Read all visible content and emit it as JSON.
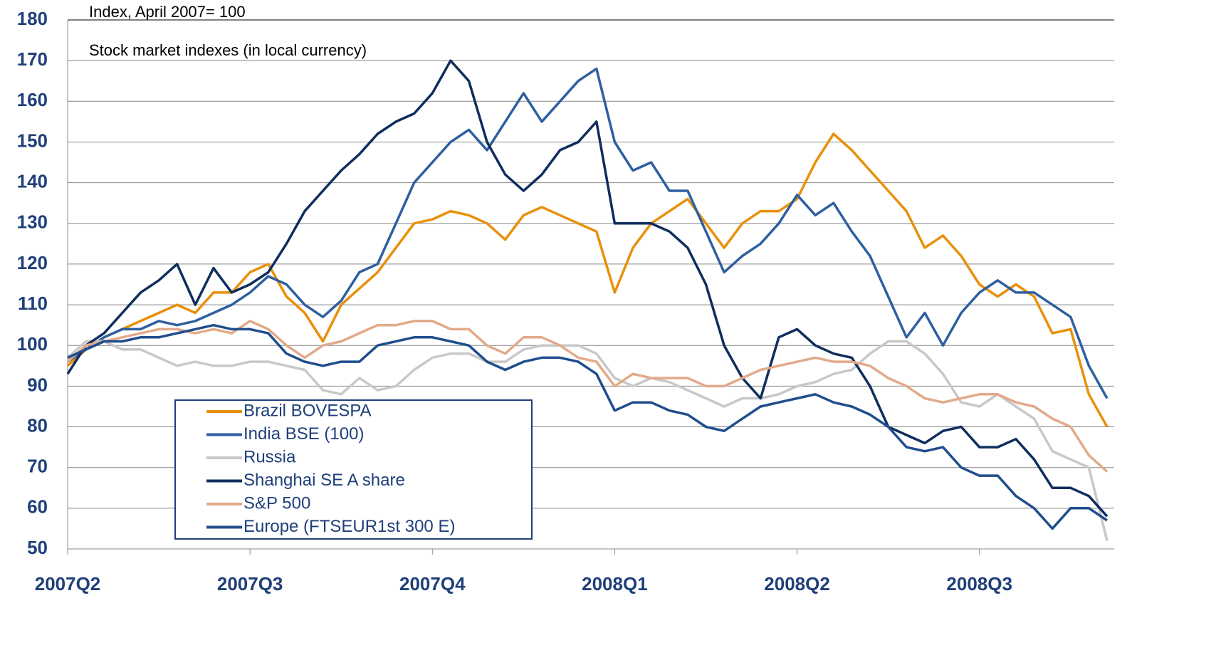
{
  "chart_data": {
    "type": "line",
    "subtitle": "Index, April 2007= 100",
    "title": "Stock market indexes (in local currency)",
    "categories": [
      "2007Q2",
      null,
      null,
      null,
      null,
      null,
      null,
      null,
      null,
      null,
      "2007Q3",
      null,
      null,
      null,
      null,
      null,
      null,
      null,
      null,
      null,
      "2007Q4",
      null,
      null,
      null,
      null,
      null,
      null,
      null,
      null,
      null,
      "2008Q1",
      null,
      null,
      null,
      null,
      null,
      null,
      null,
      null,
      null,
      "2008Q2",
      null,
      null,
      null,
      null,
      null,
      null,
      null,
      null,
      null,
      "2008Q3",
      null,
      null,
      null,
      null,
      null,
      null,
      null
    ],
    "ylim": [
      50,
      180
    ],
    "yticks": [
      50,
      60,
      70,
      80,
      90,
      100,
      110,
      120,
      130,
      140,
      150,
      160,
      170,
      180
    ],
    "grid": true,
    "series": [
      {
        "name": "Brazil BOVESPA",
        "color": "#e8900c",
        "values": [
          95,
          99,
          102,
          104,
          106,
          108,
          110,
          108,
          113,
          113,
          118,
          120,
          112,
          108,
          101,
          110,
          114,
          118,
          124,
          130,
          131,
          133,
          132,
          130,
          126,
          132,
          134,
          132,
          130,
          128,
          113,
          124,
          130,
          133,
          136,
          130,
          124,
          130,
          133,
          133,
          136,
          145,
          152,
          148,
          143,
          138,
          133,
          124,
          127,
          122,
          115,
          112,
          115,
          112,
          103,
          104,
          88,
          80
        ]
      },
      {
        "name": "India BSE (100)",
        "color": "#2e5fa0",
        "values": [
          96,
          99,
          102,
          104,
          104,
          106,
          105,
          106,
          108,
          110,
          113,
          117,
          115,
          110,
          107,
          111,
          118,
          120,
          130,
          140,
          145,
          150,
          153,
          148,
          155,
          162,
          155,
          160,
          165,
          168,
          150,
          143,
          145,
          138,
          138,
          128,
          118,
          122,
          125,
          130,
          137,
          132,
          135,
          128,
          122,
          112,
          102,
          108,
          100,
          108,
          113,
          116,
          113,
          113,
          110,
          107,
          95,
          87
        ]
      },
      {
        "name": "Russia",
        "color": "#c8c8c8",
        "values": [
          97,
          101,
          101,
          99,
          99,
          97,
          95,
          96,
          95,
          95,
          96,
          96,
          95,
          94,
          89,
          88,
          92,
          89,
          90,
          94,
          97,
          98,
          98,
          96,
          96,
          99,
          100,
          100,
          100,
          98,
          92,
          90,
          92,
          91,
          89,
          87,
          85,
          87,
          87,
          88,
          90,
          91,
          93,
          94,
          98,
          101,
          101,
          98,
          93,
          86,
          85,
          88,
          85,
          82,
          74,
          72,
          70,
          52
        ]
      },
      {
        "name": "Shanghai SE A share",
        "color": "#0f2d5e",
        "values": [
          93,
          100,
          103,
          108,
          113,
          116,
          120,
          110,
          119,
          113,
          115,
          118,
          125,
          133,
          138,
          143,
          147,
          152,
          155,
          157,
          162,
          170,
          165,
          150,
          142,
          138,
          142,
          148,
          150,
          155,
          130,
          130,
          130,
          128,
          124,
          115,
          100,
          92,
          87,
          102,
          104,
          100,
          98,
          97,
          90,
          80,
          78,
          76,
          79,
          80,
          75,
          75,
          77,
          72,
          65,
          65,
          63,
          58
        ]
      },
      {
        "name": "S&P 500",
        "color": "#e2aa8a",
        "values": [
          96,
          100,
          101,
          102,
          103,
          104,
          104,
          103,
          104,
          103,
          106,
          104,
          100,
          97,
          100,
          101,
          103,
          105,
          105,
          106,
          106,
          104,
          104,
          100,
          98,
          102,
          102,
          100,
          97,
          96,
          90,
          93,
          92,
          92,
          92,
          90,
          90,
          92,
          94,
          95,
          96,
          97,
          96,
          96,
          95,
          92,
          90,
          87,
          86,
          87,
          88,
          88,
          86,
          85,
          82,
          80,
          73,
          69
        ]
      },
      {
        "name": "Europe (FTSEUR1st 300 E)",
        "color": "#1f4e8c",
        "values": [
          97,
          99,
          101,
          101,
          102,
          102,
          103,
          104,
          105,
          104,
          104,
          103,
          98,
          96,
          95,
          96,
          96,
          100,
          101,
          102,
          102,
          101,
          100,
          96,
          94,
          96,
          97,
          97,
          96,
          93,
          84,
          86,
          86,
          84,
          83,
          80,
          79,
          82,
          85,
          86,
          87,
          88,
          86,
          85,
          83,
          80,
          75,
          74,
          75,
          70,
          68,
          68,
          63,
          60,
          55,
          60,
          60,
          57
        ]
      }
    ]
  }
}
